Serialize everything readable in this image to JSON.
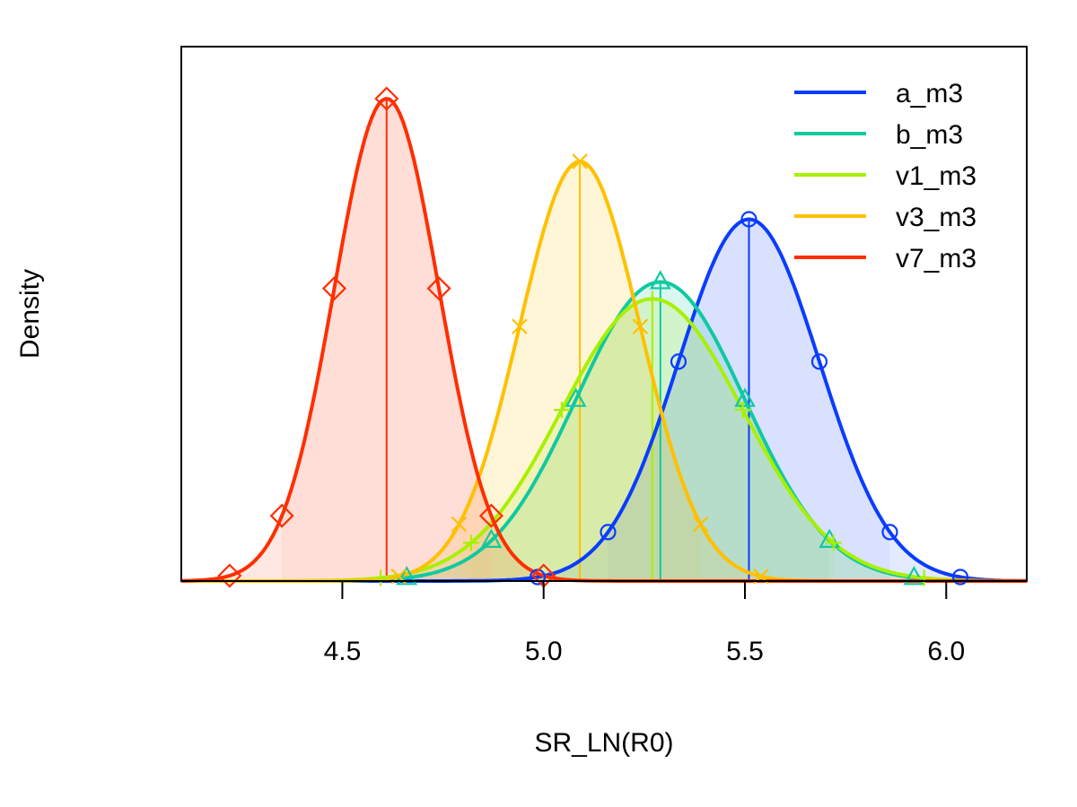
{
  "chart_data": {
    "type": "line",
    "xlabel": "SR_LN(R0)",
    "ylabel": "Density",
    "xlim": [
      4.1,
      6.2
    ],
    "xticks": [
      "4.5",
      "5.0",
      "5.5",
      "6.0"
    ],
    "xtick_values": [
      4.5,
      5.0,
      5.5,
      6.0
    ],
    "yticks_shown": false,
    "grid": false,
    "legend_position": "top-right",
    "series": [
      {
        "name": "a_m3",
        "color": "#0a3cff",
        "mean": 5.51,
        "sd": 0.175,
        "peak": 0.75,
        "marker": "circle"
      },
      {
        "name": "b_m3",
        "color": "#10c9a0",
        "mean": 5.29,
        "sd": 0.21,
        "peak": 0.62,
        "marker": "triangle"
      },
      {
        "name": "v1_m3",
        "color": "#a8f000",
        "mean": 5.27,
        "sd": 0.225,
        "peak": 0.585,
        "marker": "plus"
      },
      {
        "name": "v3_m3",
        "color": "#ffc000",
        "mean": 5.09,
        "sd": 0.15,
        "peak": 0.87,
        "marker": "cross"
      },
      {
        "name": "v7_m3",
        "color": "#ff2e00",
        "mean": 4.61,
        "sd": 0.13,
        "peak": 1.0,
        "marker": "diamond"
      }
    ]
  }
}
